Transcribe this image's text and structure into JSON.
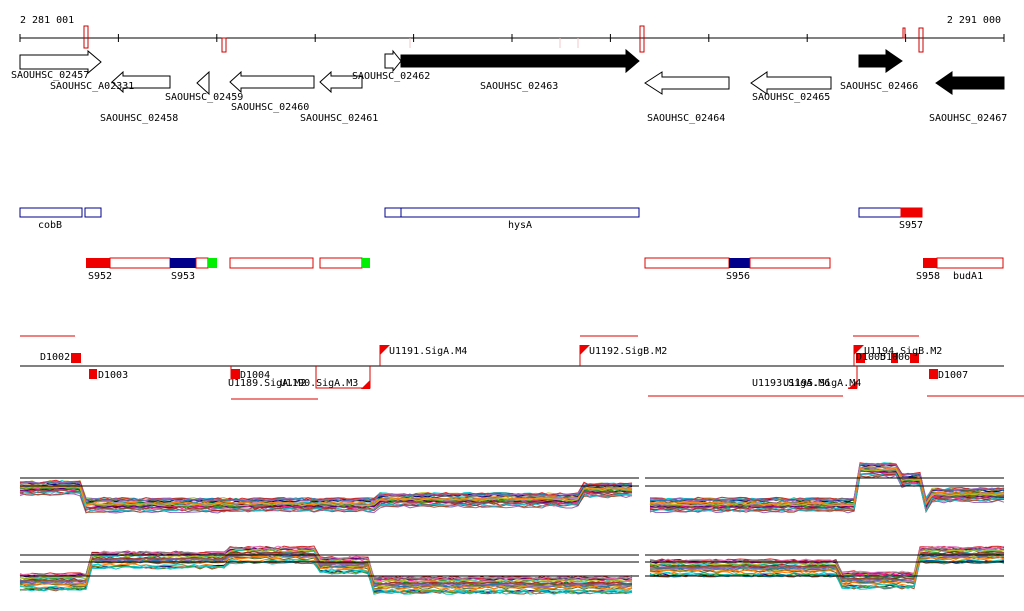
{
  "coordinates": {
    "start_label": "2 281 001",
    "end_label": "2 291 000"
  },
  "genes": [
    {
      "name": "SAOUHSC_02457",
      "strand": "+",
      "filled": false
    },
    {
      "name": "SAOUHSC_A02331",
      "strand": "-",
      "filled": false
    },
    {
      "name": "SAOUHSC_02458",
      "strand": "-",
      "filled": false
    },
    {
      "name": "SAOUHSC_02459",
      "strand": "-",
      "filled": false
    },
    {
      "name": "SAOUHSC_02460",
      "strand": "-",
      "filled": false
    },
    {
      "name": "SAOUHSC_02461",
      "strand": "-",
      "filled": false
    },
    {
      "name": "SAOUHSC_02462",
      "strand": "+",
      "filled": false
    },
    {
      "name": "SAOUHSC_02463",
      "strand": "+",
      "filled": true
    },
    {
      "name": "SAOUHSC_02464",
      "strand": "-",
      "filled": false
    },
    {
      "name": "SAOUHSC_02465",
      "strand": "-",
      "filled": false
    },
    {
      "name": "SAOUHSC_02466",
      "strand": "+",
      "filled": true
    },
    {
      "name": "SAOUHSC_02467",
      "strand": "-",
      "filled": true
    }
  ],
  "operons_blue": [
    {
      "name": "cobB"
    },
    {
      "name": "hysA"
    },
    {
      "name": "S957"
    }
  ],
  "operons_red": [
    {
      "name": "S952"
    },
    {
      "name": "S953"
    },
    {
      "name": "S956"
    },
    {
      "name": "S958"
    },
    {
      "name": "budA1"
    }
  ],
  "features": [
    {
      "name": "D1002"
    },
    {
      "name": "D1003"
    },
    {
      "name": "D1004"
    },
    {
      "name": "U1189.SigA.M2"
    },
    {
      "name": "U1190.SigA.M3"
    },
    {
      "name": "U1191.SigA.M4"
    },
    {
      "name": "U1192.SigB.M2"
    },
    {
      "name": "U1193.SigA.M6"
    },
    {
      "name": "U1195.SigA.M4"
    },
    {
      "name": "U1194.SigB.M2"
    },
    {
      "name": "D1005"
    },
    {
      "name": "D1006"
    },
    {
      "name": "D1007"
    }
  ],
  "colors": {
    "gene_outline": "#000000",
    "operon_blue": "#00008b",
    "operon_red": "#dd0000",
    "tick_red": "#cc0000",
    "green": "#00ee00"
  }
}
